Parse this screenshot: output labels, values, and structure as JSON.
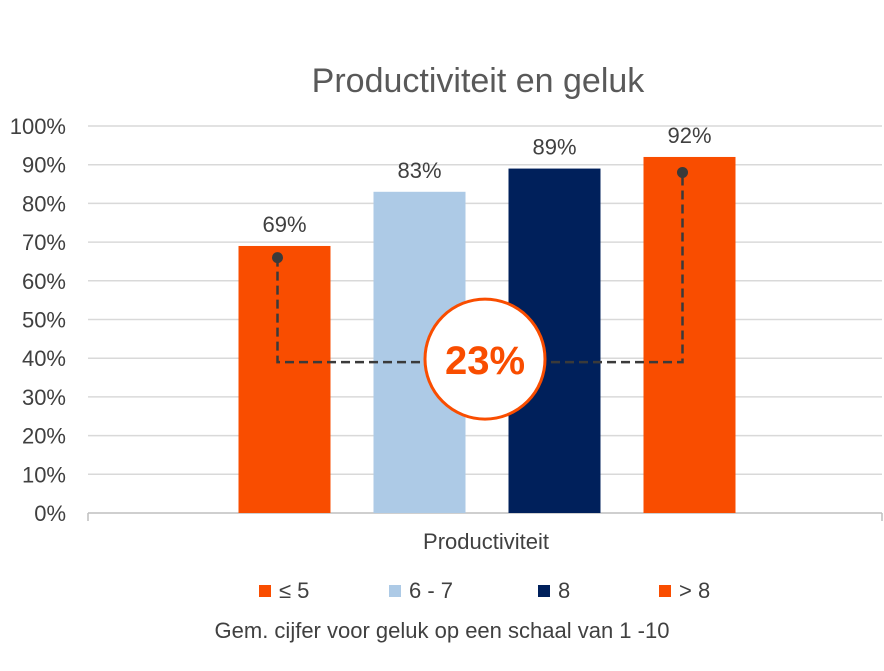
{
  "chart_data": {
    "type": "bar",
    "title": "Productiviteit en geluk",
    "xlabel": "Productiviteit",
    "ylabel": "",
    "ylim": [
      0,
      100
    ],
    "yticks": [
      "0%",
      "10%",
      "20%",
      "30%",
      "40%",
      "50%",
      "60%",
      "70%",
      "80%",
      "90%",
      "100%"
    ],
    "categories": [
      "Productiviteit"
    ],
    "series": [
      {
        "name": "≤ 5",
        "values": [
          69
        ],
        "label": "69%",
        "color": "#F94D00"
      },
      {
        "name": "6 - 7",
        "values": [
          83
        ],
        "label": "83%",
        "color": "#ADCAE6"
      },
      {
        "name": "8",
        "values": [
          89
        ],
        "label": "89%",
        "color": "#00205B"
      },
      {
        "name": "> 8",
        "values": [
          92
        ],
        "label": "92%",
        "color": "#F94D00"
      }
    ],
    "legend_position": "bottom",
    "grid": true,
    "annotation": {
      "text": "23%",
      "color": "#F94D00",
      "from_value": 66,
      "to_value": 88,
      "connector_level": 39
    },
    "note": "Gem. cijfer voor geluk op een schaal van 1 -10"
  }
}
